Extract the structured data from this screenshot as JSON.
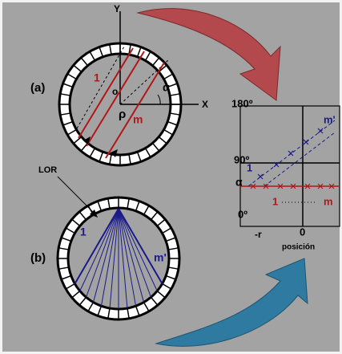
{
  "labels": {
    "panel_a": "(a)",
    "panel_b": "(b)",
    "axis_y": "Y",
    "axis_x": "X",
    "origin": "o",
    "rho": "ρ",
    "alpha_a": "α",
    "line_1_a": "1",
    "line_m_a": "m",
    "lor": "LOR",
    "line_1_b": "1",
    "line_m_b": "m'"
  },
  "sinogram": {
    "y_labels": [
      "180º",
      "90º",
      "α",
      "0º"
    ],
    "x_labels": [
      "-r",
      "0"
    ],
    "x_title": "posición",
    "trace_1": "1",
    "trace_m": "m'",
    "row_1": "1",
    "row_m": "m"
  }
}
